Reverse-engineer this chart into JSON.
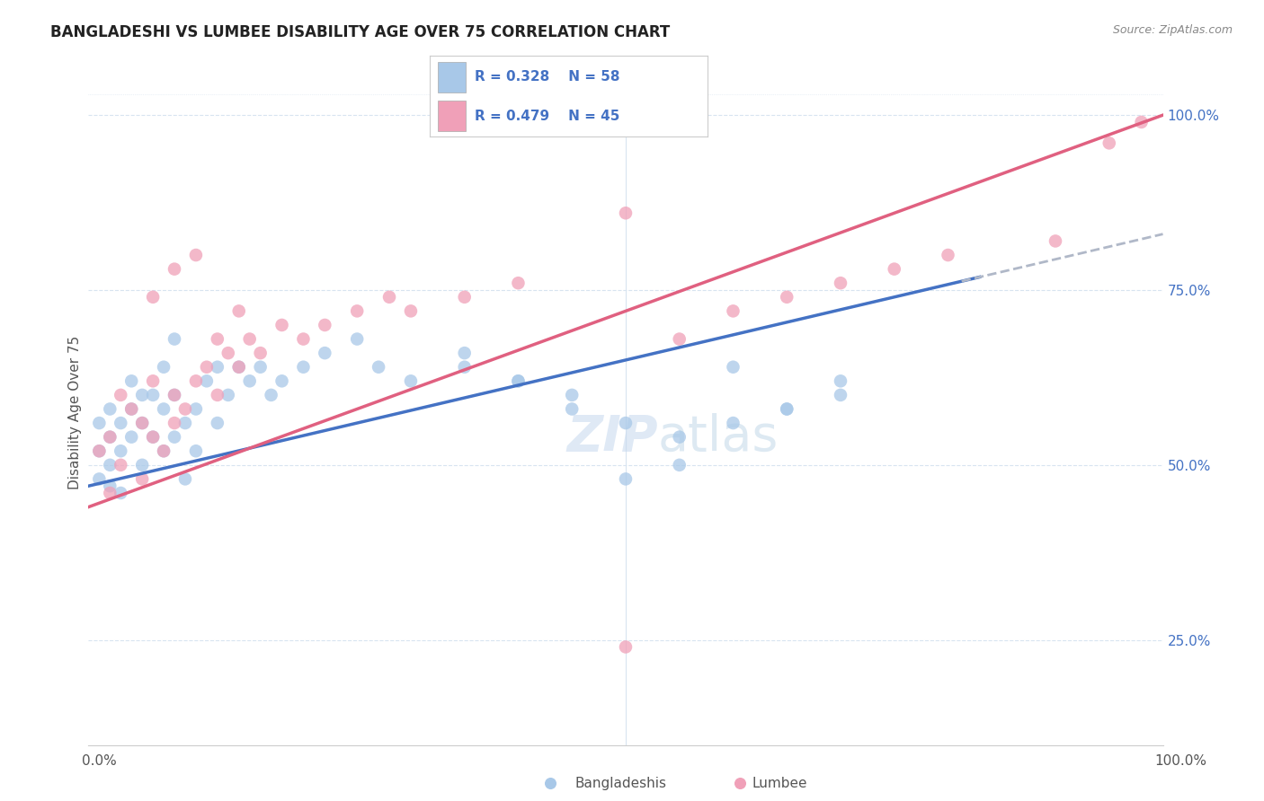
{
  "title": "BANGLADESHI VS LUMBEE DISABILITY AGE OVER 75 CORRELATION CHART",
  "source": "Source: ZipAtlas.com",
  "ylabel": "Disability Age Over 75",
  "bangladeshi_R": 0.328,
  "bangladeshi_N": 58,
  "lumbee_R": 0.479,
  "lumbee_N": 45,
  "bangladeshi_color": "#a8c8e8",
  "lumbee_color": "#f0a0b8",
  "trend_blue": "#4472c4",
  "trend_pink": "#e06080",
  "trend_gray_dash": "#b0b8c8",
  "watermark_zip": "ZIP",
  "watermark_atlas": "atlas",
  "background_color": "#ffffff",
  "grid_color": "#d8e4f0",
  "right_label_color": "#4472c4",
  "xlim": [
    0,
    100
  ],
  "ylim": [
    10,
    105
  ],
  "right_ytick_vals": [
    25,
    50,
    75,
    100
  ],
  "right_ytick_labels": [
    "25.0%",
    "50.0%",
    "75.0%",
    "100.0%"
  ],
  "blue_line_x0": 0,
  "blue_line_y0": 47,
  "blue_line_x1": 100,
  "blue_line_y1": 83,
  "blue_solid_end": 83,
  "pink_line_x0": 0,
  "pink_line_y0": 44,
  "pink_line_x1": 100,
  "pink_line_y1": 100,
  "bangladeshi_x": [
    1,
    1,
    1,
    2,
    2,
    2,
    2,
    3,
    3,
    3,
    4,
    4,
    4,
    5,
    5,
    5,
    6,
    6,
    7,
    7,
    7,
    8,
    8,
    8,
    9,
    9,
    10,
    10,
    11,
    12,
    12,
    13,
    14,
    15,
    16,
    17,
    18,
    20,
    22,
    25,
    27,
    30,
    35,
    40,
    45,
    50,
    55,
    60,
    65,
    70,
    35,
    40,
    45,
    50,
    55,
    60,
    65,
    70
  ],
  "bangladeshi_y": [
    48,
    52,
    56,
    50,
    54,
    58,
    47,
    52,
    56,
    46,
    54,
    58,
    62,
    50,
    56,
    60,
    54,
    60,
    52,
    58,
    64,
    54,
    60,
    68,
    56,
    48,
    58,
    52,
    62,
    56,
    64,
    60,
    64,
    62,
    64,
    60,
    62,
    64,
    66,
    68,
    64,
    62,
    64,
    62,
    60,
    48,
    50,
    64,
    58,
    62,
    66,
    62,
    58,
    56,
    54,
    56,
    58,
    60
  ],
  "lumbee_x": [
    1,
    2,
    2,
    3,
    3,
    4,
    5,
    5,
    6,
    6,
    7,
    8,
    8,
    9,
    10,
    11,
    12,
    12,
    13,
    14,
    15,
    16,
    18,
    20,
    22,
    25,
    28,
    30,
    35,
    40,
    50,
    55,
    60,
    65,
    70,
    75,
    80,
    90,
    95,
    98,
    10,
    14,
    50,
    8,
    6
  ],
  "lumbee_y": [
    52,
    54,
    46,
    50,
    60,
    58,
    56,
    48,
    62,
    54,
    52,
    60,
    56,
    58,
    62,
    64,
    60,
    68,
    66,
    64,
    68,
    66,
    70,
    68,
    70,
    72,
    74,
    72,
    74,
    76,
    24,
    68,
    72,
    74,
    76,
    78,
    80,
    82,
    96,
    99,
    80,
    72,
    86,
    78,
    74
  ]
}
